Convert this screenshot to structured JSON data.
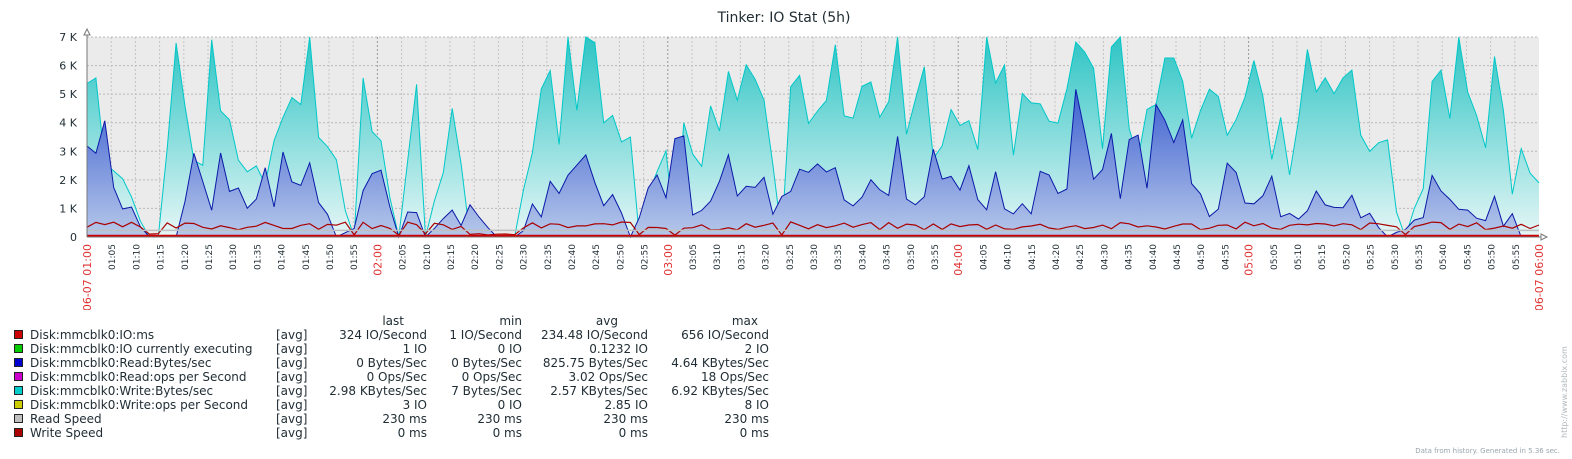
{
  "chart_data": {
    "type": "area",
    "title": "Tinker: IO Stat (5h)",
    "ylim": [
      0,
      7000
    ],
    "y_ticks": [
      "0",
      "1 K",
      "2 K",
      "3 K",
      "4 K",
      "5 K",
      "6 K",
      "7 K"
    ],
    "y_tick_values": [
      0,
      1000,
      2000,
      3000,
      4000,
      5000,
      6000,
      7000
    ],
    "x_range": [
      "06-07 01:00",
      "06-07 06:00"
    ],
    "x_start_label": "06-07 01:00",
    "x_end_label": "06-07 06:00",
    "x_ticks": [
      "01:05",
      "01:10",
      "01:15",
      "01:20",
      "01:25",
      "01:30",
      "01:35",
      "01:40",
      "01:45",
      "01:50",
      "01:55",
      "02:00",
      "02:05",
      "02:10",
      "02:15",
      "02:20",
      "02:25",
      "02:30",
      "02:35",
      "02:40",
      "02:45",
      "02:50",
      "02:55",
      "03:00",
      "03:05",
      "03:10",
      "03:15",
      "03:20",
      "03:25",
      "03:30",
      "03:35",
      "03:40",
      "03:45",
      "03:50",
      "03:55",
      "04:00",
      "04:05",
      "04:10",
      "04:15",
      "04:20",
      "04:25",
      "04:30",
      "04:35",
      "04:40",
      "04:45",
      "04:50",
      "04:55",
      "05:00",
      "05:05",
      "05:10",
      "05:15",
      "05:20",
      "05:25",
      "05:30",
      "05:35",
      "05:40",
      "05:45",
      "05:50",
      "05:55"
    ],
    "major_ticks": [
      "02:00",
      "03:00",
      "04:00",
      "05:00"
    ],
    "grid": true,
    "write_bytes_peaks": [
      [
        1,
        5400
      ],
      [
        2,
        3200
      ],
      [
        4,
        2100
      ],
      [
        7,
        0
      ],
      [
        8,
        0
      ],
      [
        9,
        2600
      ],
      [
        10,
        6500
      ],
      [
        11,
        4800
      ],
      [
        12,
        3000
      ],
      [
        13,
        2200
      ],
      [
        14,
        6400
      ],
      [
        15,
        5600
      ],
      [
        16,
        4100
      ],
      [
        18,
        2100
      ],
      [
        19,
        3000
      ],
      [
        20,
        1800
      ],
      [
        22,
        5000
      ],
      [
        23,
        6300
      ],
      [
        24,
        3800
      ],
      [
        25,
        6100
      ],
      [
        26,
        4300
      ],
      [
        28,
        2200
      ],
      [
        30,
        0
      ],
      [
        31,
        5800
      ],
      [
        32,
        3600
      ],
      [
        33,
        3100
      ],
      [
        35,
        0
      ],
      [
        36,
        3200
      ],
      [
        37,
        4300
      ],
      [
        38,
        0
      ],
      [
        40,
        2600
      ],
      [
        41,
        4400
      ],
      [
        42,
        2800
      ],
      [
        43,
        0
      ],
      [
        44,
        0
      ],
      [
        46,
        0
      ],
      [
        48,
        0
      ],
      [
        49,
        2000
      ],
      [
        50,
        2600
      ],
      [
        51,
        5600
      ],
      [
        52,
        6300
      ],
      [
        53,
        4100
      ],
      [
        54,
        6400
      ],
      [
        55,
        5100
      ],
      [
        56,
        6400
      ],
      [
        57,
        6900
      ],
      [
        58,
        4600
      ],
      [
        60,
        3500
      ],
      [
        61,
        3100
      ],
      [
        62,
        0
      ],
      [
        64,
        2800
      ],
      [
        65,
        3500
      ],
      [
        66,
        0
      ],
      [
        67,
        4100
      ],
      [
        69,
        3200
      ],
      [
        70,
        4800
      ],
      [
        71,
        3400
      ],
      [
        72,
        5400
      ],
      [
        73,
        3900
      ],
      [
        74,
        6600
      ],
      [
        76,
        4800
      ],
      [
        77,
        2600
      ],
      [
        78,
        0
      ],
      [
        79,
        4500
      ],
      [
        80,
        5800
      ],
      [
        81,
        4100
      ],
      [
        82,
        5000
      ],
      [
        84,
        6000
      ],
      [
        85,
        5200
      ],
      [
        86,
        4700
      ],
      [
        88,
        4600
      ],
      [
        89,
        3400
      ],
      [
        90,
        3900
      ],
      [
        91,
        6400
      ],
      [
        92,
        3200
      ],
      [
        94,
        5800
      ],
      [
        95,
        3600
      ],
      [
        96,
        3500
      ],
      [
        97,
        4800
      ],
      [
        99,
        4300
      ],
      [
        100,
        2800
      ],
      [
        101,
        6400
      ],
      [
        102,
        6100
      ],
      [
        103,
        4900
      ],
      [
        104,
        3800
      ],
      [
        105,
        5400
      ],
      [
        106,
        4500
      ],
      [
        108,
        5100
      ],
      [
        109,
        3200
      ],
      [
        110,
        5300
      ],
      [
        112,
        6200
      ],
      [
        113,
        6000
      ],
      [
        114,
        3800
      ],
      [
        115,
        5800
      ],
      [
        116,
        6300
      ],
      [
        117,
        4300
      ],
      [
        118,
        3600
      ],
      [
        119,
        5400
      ],
      [
        120,
        4200
      ],
      [
        121,
        5700
      ],
      [
        122,
        5800
      ],
      [
        123,
        4600
      ],
      [
        124,
        4000
      ],
      [
        125,
        3800
      ],
      [
        126,
        6200
      ],
      [
        127,
        6400
      ],
      [
        128,
        4500
      ],
      [
        129,
        5400
      ],
      [
        130,
        4800
      ],
      [
        131,
        5300
      ],
      [
        132,
        4200
      ],
      [
        133,
        3300
      ],
      [
        134,
        4200
      ],
      [
        135,
        2800
      ],
      [
        136,
        4600
      ],
      [
        137,
        6600
      ],
      [
        138,
        6500
      ],
      [
        139,
        6000
      ],
      [
        140,
        5800
      ],
      [
        141,
        6200
      ],
      [
        142,
        5100
      ],
      [
        144,
        3600
      ],
      [
        145,
        4400
      ],
      [
        146,
        3200
      ],
      [
        147,
        1100
      ],
      [
        148,
        0
      ],
      [
        150,
        2100
      ],
      [
        151,
        5500
      ],
      [
        152,
        6100
      ],
      [
        153,
        5500
      ],
      [
        154,
        6200
      ],
      [
        155,
        5200
      ],
      [
        156,
        3800
      ],
      [
        157,
        3400
      ],
      [
        158,
        5200
      ],
      [
        159,
        4000
      ],
      [
        160,
        1400
      ],
      [
        161,
        3500
      ],
      [
        162,
        2400
      ]
    ],
    "read_bytes_peaks": [
      [
        1,
        2800
      ],
      [
        2,
        3300
      ],
      [
        3,
        1700
      ],
      [
        7,
        0
      ],
      [
        10,
        0
      ],
      [
        11,
        1700
      ],
      [
        12,
        3100
      ],
      [
        13,
        2200
      ],
      [
        14,
        800
      ],
      [
        15,
        2400
      ],
      [
        16,
        2100
      ],
      [
        18,
        900
      ],
      [
        19,
        1800
      ],
      [
        20,
        2700
      ],
      [
        21,
        1200
      ],
      [
        22,
        2800
      ],
      [
        23,
        1500
      ],
      [
        25,
        3300
      ],
      [
        26,
        1600
      ],
      [
        28,
        0
      ],
      [
        30,
        400
      ],
      [
        31,
        1300
      ],
      [
        32,
        1800
      ],
      [
        33,
        2500
      ],
      [
        34,
        900
      ],
      [
        35,
        0
      ],
      [
        36,
        700
      ],
      [
        37,
        900
      ],
      [
        38,
        0
      ],
      [
        40,
        600
      ],
      [
        41,
        900
      ],
      [
        42,
        400
      ],
      [
        43,
        1200
      ],
      [
        46,
        0
      ],
      [
        48,
        0
      ],
      [
        49,
        200
      ],
      [
        50,
        900
      ],
      [
        51,
        1000
      ],
      [
        52,
        1600
      ],
      [
        53,
        2100
      ],
      [
        54,
        2400
      ],
      [
        55,
        2700
      ],
      [
        56,
        2300
      ],
      [
        57,
        1800
      ],
      [
        58,
        1000
      ],
      [
        59,
        2100
      ],
      [
        60,
        1000
      ],
      [
        61,
        0
      ],
      [
        62,
        900
      ],
      [
        63,
        1500
      ],
      [
        64,
        2000
      ],
      [
        65,
        1800
      ],
      [
        66,
        3400
      ],
      [
        67,
        4200
      ],
      [
        68,
        1000
      ],
      [
        69,
        800
      ],
      [
        70,
        1300
      ],
      [
        71,
        1900
      ],
      [
        72,
        2300
      ],
      [
        73,
        1300
      ],
      [
        74,
        1500
      ],
      [
        76,
        2300
      ],
      [
        77,
        900
      ],
      [
        78,
        1400
      ],
      [
        79,
        1300
      ],
      [
        80,
        2400
      ],
      [
        81,
        1900
      ],
      [
        82,
        2300
      ],
      [
        83,
        2000
      ],
      [
        84,
        2200
      ],
      [
        85,
        1600
      ],
      [
        86,
        1100
      ],
      [
        88,
        1700
      ],
      [
        89,
        2100
      ],
      [
        90,
        1300
      ],
      [
        91,
        2800
      ],
      [
        92,
        1700
      ],
      [
        93,
        1000
      ],
      [
        94,
        2000
      ],
      [
        95,
        2500
      ],
      [
        96,
        1600
      ],
      [
        97,
        2200
      ],
      [
        98,
        1400
      ],
      [
        99,
        2100
      ],
      [
        100,
        1200
      ],
      [
        101,
        1100
      ],
      [
        102,
        2000
      ],
      [
        104,
        700
      ],
      [
        105,
        1500
      ],
      [
        106,
        1100
      ],
      [
        107,
        2100
      ],
      [
        108,
        2300
      ],
      [
        109,
        2000
      ],
      [
        110,
        1800
      ],
      [
        111,
        4000
      ],
      [
        112,
        3500
      ],
      [
        113,
        2200
      ],
      [
        114,
        2700
      ],
      [
        115,
        2900
      ],
      [
        116,
        1900
      ],
      [
        117,
        3000
      ],
      [
        118,
        3500
      ],
      [
        119,
        1500
      ],
      [
        120,
        4100
      ],
      [
        121,
        3400
      ],
      [
        122,
        2600
      ],
      [
        123,
        3700
      ],
      [
        124,
        2200
      ],
      [
        125,
        2000
      ],
      [
        126,
        1000
      ],
      [
        127,
        1200
      ],
      [
        128,
        2500
      ],
      [
        129,
        2800
      ],
      [
        130,
        1600
      ],
      [
        131,
        1000
      ],
      [
        132,
        1400
      ],
      [
        133,
        2400
      ],
      [
        134,
        900
      ],
      [
        136,
        700
      ],
      [
        137,
        1200
      ],
      [
        138,
        1500
      ],
      [
        139,
        1100
      ],
      [
        140,
        1400
      ],
      [
        141,
        1300
      ],
      [
        142,
        1600
      ],
      [
        143,
        700
      ],
      [
        144,
        800
      ],
      [
        146,
        0
      ],
      [
        148,
        300
      ],
      [
        150,
        900
      ],
      [
        151,
        1900
      ],
      [
        152,
        1500
      ],
      [
        153,
        1600
      ],
      [
        154,
        1100
      ],
      [
        155,
        1300
      ],
      [
        156,
        700
      ],
      [
        157,
        600
      ],
      [
        158,
        1800
      ],
      [
        159,
        500
      ],
      [
        160,
        800
      ],
      [
        161,
        0
      ],
      [
        162,
        0
      ]
    ],
    "series": [
      {
        "name": "Disk:mmcblk0:IO:ms",
        "fn": "[avg]",
        "color": "#cc0000",
        "last": "324 IO/Second",
        "min": "1 IO/Second",
        "avg": "234.48 IO/Second",
        "max": "656 IO/Second"
      },
      {
        "name": "Disk:mmcblk0:IO currently executing",
        "fn": "[avg]",
        "color": "#00cc00",
        "last": "1 IO",
        "min": "0 IO",
        "avg": "0.1232 IO",
        "max": "2 IO"
      },
      {
        "name": "Disk:mmcblk0:Read:Bytes/sec",
        "fn": "[avg]",
        "color": "#0000cc",
        "last": "0 Bytes/Sec",
        "min": "0 Bytes/Sec",
        "avg": "825.75 Bytes/Sec",
        "max": "4.64 KBytes/Sec"
      },
      {
        "name": "Disk:mmcblk0:Read:ops per Second",
        "fn": "[avg]",
        "color": "#cc00cc",
        "last": "0 Ops/Sec",
        "min": "0 Ops/Sec",
        "avg": "3.02 Ops/Sec",
        "max": "18 Ops/Sec"
      },
      {
        "name": "Disk:mmcblk0:Write:Bytes/sec",
        "fn": "[avg]",
        "color": "#00cccc",
        "last": "2.98 KBytes/Sec",
        "min": "7 Bytes/Sec",
        "avg": "2.57 KBytes/Sec",
        "max": "6.92 KBytes/Sec"
      },
      {
        "name": "Disk:mmcblk0:Write:ops per Second",
        "fn": "[avg]",
        "color": "#cccc00",
        "last": "3 IO",
        "min": "0 IO",
        "avg": "2.85 IO",
        "max": "8 IO"
      },
      {
        "name": "Read Speed",
        "fn": "[avg]",
        "color": "#c0c0c0",
        "last": "230 ms",
        "min": "230 ms",
        "avg": "230 ms",
        "max": "230 ms"
      },
      {
        "name": "Write Speed",
        "fn": "[avg]",
        "color": "#aa0000",
        "last": "0 ms",
        "min": "0 ms",
        "avg": "0 ms",
        "max": "0 ms"
      }
    ],
    "legend_headers": {
      "last": "last",
      "min": "min",
      "avg": "avg",
      "max": "max"
    },
    "legend": "bottom-left"
  },
  "footer": "Data from history. Generated in 5.36 sec.",
  "watermark": "http://www.zabbix.com"
}
